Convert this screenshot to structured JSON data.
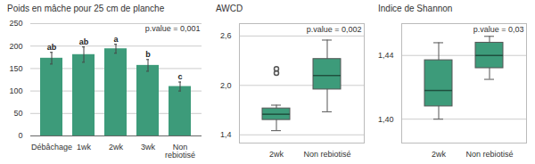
{
  "chart_data": [
    {
      "type": "bar",
      "title": "Poids en mâche pour 25 cm de planche",
      "categories": [
        "Débâchage",
        "1wk",
        "2wk",
        "3wk",
        "Non rebiotisé"
      ],
      "values": [
        173,
        181,
        194,
        157,
        110
      ],
      "errors": [
        13,
        17,
        10,
        13,
        10
      ],
      "letters": [
        "ab",
        "ab",
        "a",
        "b",
        "c"
      ],
      "annotation": "p.value = 0,001",
      "color": "#3d9b7a",
      "ylim": [
        0,
        250
      ],
      "yticks": [
        0,
        50,
        100,
        150,
        200,
        250
      ],
      "grid": true
    },
    {
      "type": "box",
      "title": "AWCD",
      "categories": [
        "2wk",
        "Non rebiotisé"
      ],
      "boxes": [
        {
          "min": 1.45,
          "q1": 1.58,
          "median": 1.65,
          "q3": 1.72,
          "max": 1.76,
          "outliers": [
            2.15,
            2.2
          ]
        },
        {
          "min": 1.68,
          "q1": 1.95,
          "median": 2.12,
          "q3": 2.32,
          "max": 2.55,
          "outliers": []
        }
      ],
      "annotation": "p.value = 0,002",
      "color": "#3d9b7a",
      "ylim": [
        1.3,
        2.75
      ],
      "yticks": [
        {
          "value": 1.4,
          "label": "1,4"
        },
        {
          "value": 2.0,
          "label": "2,0"
        },
        {
          "value": 2.6,
          "label": "2,6"
        }
      ],
      "grid": true
    },
    {
      "type": "box",
      "title": "Indice de Shannon",
      "categories": [
        "2wk",
        "Non rebiotisé"
      ],
      "boxes": [
        {
          "min": 1.4,
          "q1": 1.408,
          "median": 1.418,
          "q3": 1.437,
          "max": 1.448,
          "outliers": []
        },
        {
          "min": 1.425,
          "q1": 1.432,
          "median": 1.44,
          "q3": 1.448,
          "max": 1.452,
          "outliers": []
        }
      ],
      "annotation": "p.value = 0,03",
      "color": "#3d9b7a",
      "ylim": [
        1.385,
        1.46
      ],
      "yticks": [
        {
          "value": 1.4,
          "label": "1,40"
        },
        {
          "value": 1.44,
          "label": "1,44"
        }
      ],
      "grid": true
    }
  ]
}
